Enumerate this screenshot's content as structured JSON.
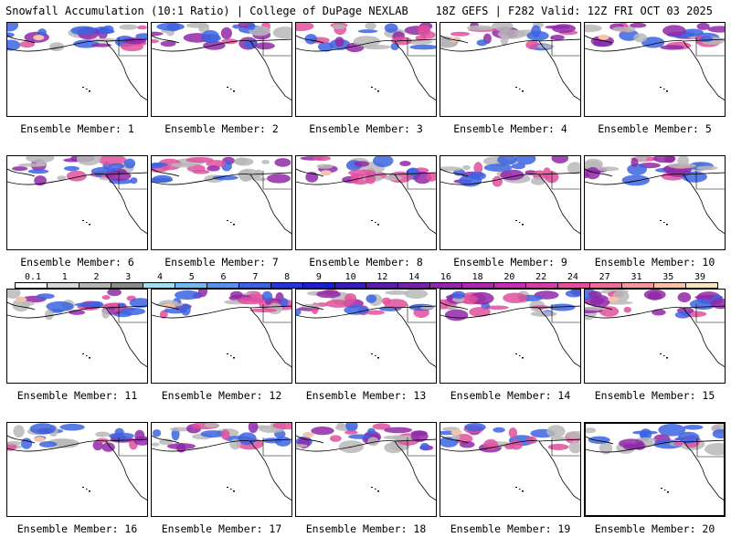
{
  "header": {
    "title_left": "Snowfall Accumulation (10:1 Ratio) | College of DuPage NEXLAB",
    "title_right": "18Z GEFS | F282 Valid: 12Z FRI OCT 03 2025"
  },
  "label_prefix": "Ensemble Member: ",
  "members": [
    {
      "id": 1,
      "label": "Ensemble Member: 1"
    },
    {
      "id": 2,
      "label": "Ensemble Member: 2"
    },
    {
      "id": 3,
      "label": "Ensemble Member: 3"
    },
    {
      "id": 4,
      "label": "Ensemble Member: 4"
    },
    {
      "id": 5,
      "label": "Ensemble Member: 5"
    },
    {
      "id": 6,
      "label": "Ensemble Member: 6"
    },
    {
      "id": 7,
      "label": "Ensemble Member: 7"
    },
    {
      "id": 8,
      "label": "Ensemble Member: 8"
    },
    {
      "id": 9,
      "label": "Ensemble Member: 9"
    },
    {
      "id": 10,
      "label": "Ensemble Member: 10"
    },
    {
      "id": 11,
      "label": "Ensemble Member: 11"
    },
    {
      "id": 12,
      "label": "Ensemble Member: 12"
    },
    {
      "id": 13,
      "label": "Ensemble Member: 13"
    },
    {
      "id": 14,
      "label": "Ensemble Member: 14"
    },
    {
      "id": 15,
      "label": "Ensemble Member: 15"
    },
    {
      "id": 16,
      "label": "Ensemble Member: 16"
    },
    {
      "id": 17,
      "label": "Ensemble Member: 17"
    },
    {
      "id": 18,
      "label": "Ensemble Member: 18"
    },
    {
      "id": 19,
      "label": "Ensemble Member: 19"
    },
    {
      "id": 20,
      "label": "Ensemble Member: 20"
    }
  ],
  "selected_member": 20,
  "colorbar": {
    "ticks": [
      "0.1",
      "1",
      "2",
      "3",
      "4",
      "5",
      "6",
      "7",
      "8",
      "9",
      "10",
      "12",
      "14",
      "16",
      "18",
      "20",
      "22",
      "24",
      "27",
      "31",
      "35",
      "39"
    ],
    "colors": [
      "#ffffff",
      "#d8d8d8",
      "#b4b4b4",
      "#8c8c8c",
      "#9ee0f0",
      "#78b8ee",
      "#5a94e8",
      "#3c64e0",
      "#2436d8",
      "#1e1ecc",
      "#3a1cb8",
      "#5a1ea8",
      "#7622a4",
      "#9028a8",
      "#aa2cac",
      "#c030b0",
      "#d040a8",
      "#e0509c",
      "#e8709a",
      "#f09aa0",
      "#f6c2aa",
      "#fae4c0"
    ]
  },
  "map_colors": {
    "land_outline": "#000000",
    "snow_light": "#b8b8b8",
    "snow_blue": "#3c64e0",
    "snow_purple": "#9028a8",
    "snow_pink": "#e0509c",
    "snow_peach": "#f6c2aa"
  }
}
